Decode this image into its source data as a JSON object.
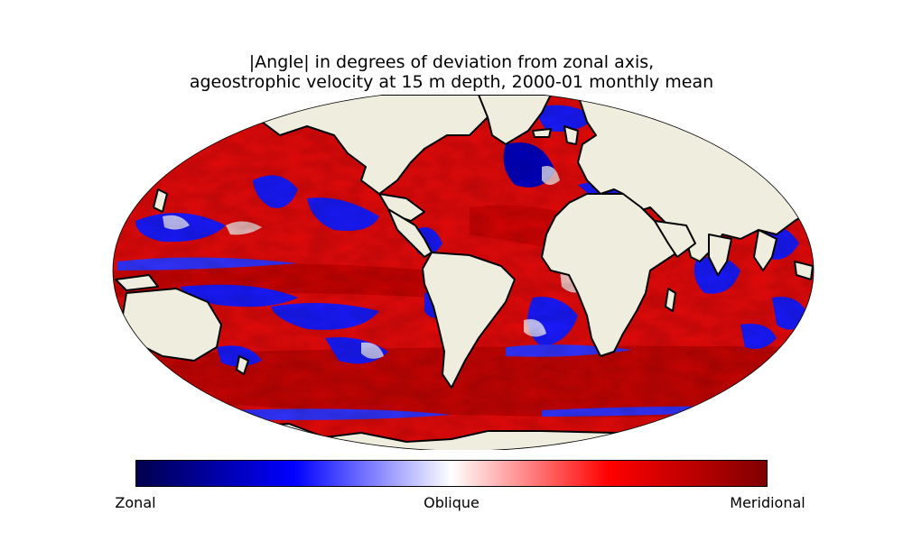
{
  "title": {
    "line1": "|Angle| in degrees of deviation from zonal axis,",
    "line2": "ageostrophic velocity at 15 m depth, 2000-01 monthly mean"
  },
  "map": {
    "projection": "Robinson",
    "land_color": "#efedde",
    "coastline_color": "#000000"
  },
  "colorbar": {
    "colormap": "seismic",
    "stops": [
      "#00004c",
      "#0000ff",
      "#ffffff",
      "#ff0000",
      "#800000"
    ],
    "labels": {
      "left": "Zonal",
      "middle": "Oblique",
      "right": "Meridional"
    }
  }
}
